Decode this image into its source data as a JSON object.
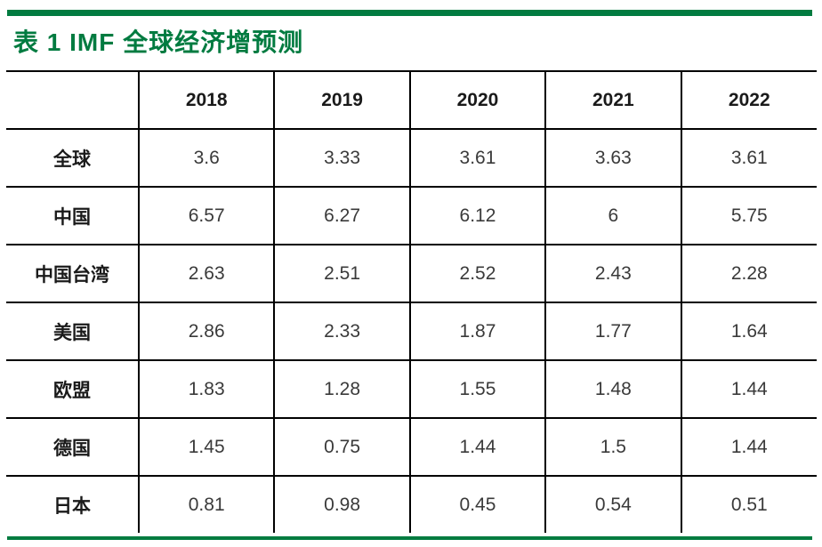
{
  "colors": {
    "accent_green": "#017B40",
    "border_black": "#000000",
    "header_text": "#1a1a1a",
    "value_text": "#3a3a3a"
  },
  "chart_data": {
    "type": "table",
    "title": "表 1 IMF 全球经济增预测",
    "corner_label": "",
    "columns": [
      "2018",
      "2019",
      "2020",
      "2021",
      "2022"
    ],
    "series": [
      {
        "name": "全球",
        "values": [
          3.6,
          3.33,
          3.61,
          3.63,
          3.61
        ]
      },
      {
        "name": "中国",
        "values": [
          6.57,
          6.27,
          6.12,
          6,
          5.75
        ]
      },
      {
        "name": "中国台湾",
        "values": [
          2.63,
          2.51,
          2.52,
          2.43,
          2.28
        ]
      },
      {
        "name": "美国",
        "values": [
          2.86,
          2.33,
          1.87,
          1.77,
          1.64
        ]
      },
      {
        "name": "欧盟",
        "values": [
          1.83,
          1.28,
          1.55,
          1.48,
          1.44
        ]
      },
      {
        "name": "德国",
        "values": [
          1.45,
          0.75,
          1.44,
          1.5,
          1.44
        ]
      },
      {
        "name": "日本",
        "values": [
          0.81,
          0.98,
          0.45,
          0.54,
          0.51
        ]
      }
    ]
  }
}
